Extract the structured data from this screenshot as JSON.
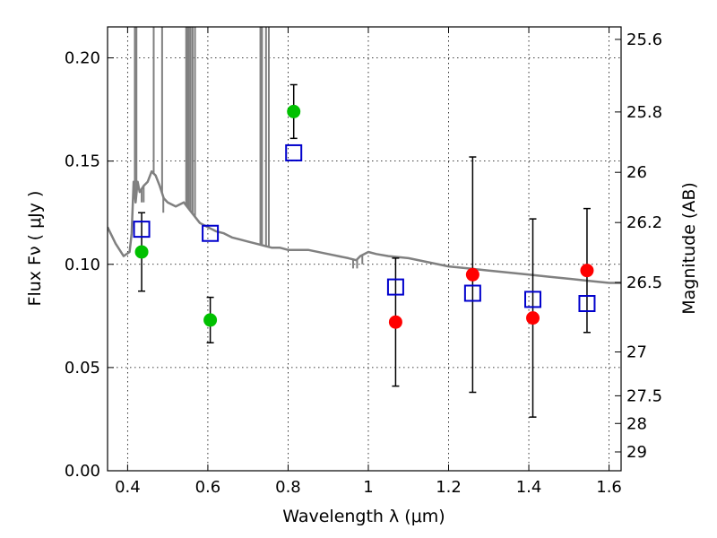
{
  "chart_data": {
    "type": "scatter",
    "xlabel": "Wavelength  λ (μm)",
    "ylabel": "Flux  Fν  ( μJy )",
    "y2label": "Magnitude (AB)",
    "xlim": [
      0.35,
      1.63
    ],
    "ylim": [
      0.0,
      0.215
    ],
    "grid": true,
    "x_ticks": [
      {
        "value": 0.4,
        "label": "0.4"
      },
      {
        "value": 0.6,
        "label": "0.6"
      },
      {
        "value": 0.8,
        "label": "0.8"
      },
      {
        "value": 1.0,
        "label": "1"
      },
      {
        "value": 1.2,
        "label": "1.2"
      },
      {
        "value": 1.4,
        "label": "1.4"
      },
      {
        "value": 1.6,
        "label": "1.6"
      }
    ],
    "y_ticks": [
      {
        "value": 0.0,
        "label": "0.00"
      },
      {
        "value": 0.05,
        "label": "0.05"
      },
      {
        "value": 0.1,
        "label": "0.10"
      },
      {
        "value": 0.15,
        "label": "0.15"
      },
      {
        "value": 0.2,
        "label": "0.20"
      }
    ],
    "y2_ticks": [
      {
        "mag": 25.6,
        "label": "25.6"
      },
      {
        "mag": 25.8,
        "label": "25.8"
      },
      {
        "mag": 26.0,
        "label": "26"
      },
      {
        "mag": 26.2,
        "label": "26.2"
      },
      {
        "mag": 26.5,
        "label": "26.5"
      },
      {
        "mag": 27.0,
        "label": "27"
      },
      {
        "mag": 27.5,
        "label": "27.5"
      },
      {
        "mag": 28.0,
        "label": "28"
      },
      {
        "mag": 29.0,
        "label": "29"
      }
    ],
    "series": [
      {
        "color": "#00c000",
        "marker": "circle",
        "points": [
          {
            "x": 0.435,
            "y": 0.106,
            "err_lo": 0.087,
            "err_hi": 0.125
          },
          {
            "x": 0.606,
            "y": 0.073,
            "err_lo": 0.062,
            "err_hi": 0.084
          },
          {
            "x": 0.814,
            "y": 0.174,
            "err_lo": 0.161,
            "err_hi": 0.187
          }
        ]
      },
      {
        "color": "#ff0000",
        "marker": "circle",
        "points": [
          {
            "x": 1.068,
            "y": 0.072,
            "err_lo": 0.041,
            "err_hi": 0.103
          },
          {
            "x": 1.26,
            "y": 0.095,
            "err_lo": 0.038,
            "err_hi": 0.152
          },
          {
            "x": 1.41,
            "y": 0.074,
            "err_lo": 0.026,
            "err_hi": 0.122
          },
          {
            "x": 1.545,
            "y": 0.097,
            "err_lo": 0.067,
            "err_hi": 0.127
          }
        ]
      },
      {
        "color": "#0000cc",
        "marker": "open-square",
        "points": [
          {
            "x": 0.435,
            "y": 0.117
          },
          {
            "x": 0.606,
            "y": 0.115
          },
          {
            "x": 0.814,
            "y": 0.154
          },
          {
            "x": 1.068,
            "y": 0.089
          },
          {
            "x": 1.26,
            "y": 0.086
          },
          {
            "x": 1.41,
            "y": 0.083
          },
          {
            "x": 1.545,
            "y": 0.081
          }
        ]
      }
    ],
    "model_spectrum": {
      "color": "#808080",
      "points": [
        [
          0.35,
          0.118
        ],
        [
          0.37,
          0.11
        ],
        [
          0.39,
          0.104
        ],
        [
          0.405,
          0.106
        ],
        [
          0.41,
          0.115
        ],
        [
          0.415,
          0.14
        ],
        [
          0.42,
          0.13
        ],
        [
          0.425,
          0.14
        ],
        [
          0.43,
          0.135
        ],
        [
          0.44,
          0.138
        ],
        [
          0.45,
          0.14
        ],
        [
          0.46,
          0.145
        ],
        [
          0.47,
          0.143
        ],
        [
          0.48,
          0.138
        ],
        [
          0.49,
          0.132
        ],
        [
          0.5,
          0.13
        ],
        [
          0.52,
          0.128
        ],
        [
          0.54,
          0.13
        ],
        [
          0.56,
          0.125
        ],
        [
          0.58,
          0.12
        ],
        [
          0.6,
          0.118
        ],
        [
          0.62,
          0.116
        ],
        [
          0.64,
          0.115
        ],
        [
          0.66,
          0.113
        ],
        [
          0.68,
          0.112
        ],
        [
          0.7,
          0.111
        ],
        [
          0.72,
          0.11
        ],
        [
          0.74,
          0.109
        ],
        [
          0.76,
          0.108
        ],
        [
          0.78,
          0.108
        ],
        [
          0.8,
          0.107
        ],
        [
          0.85,
          0.107
        ],
        [
          0.9,
          0.105
        ],
        [
          0.95,
          0.103
        ],
        [
          0.97,
          0.102
        ],
        [
          0.98,
          0.104
        ],
        [
          1.0,
          0.106
        ],
        [
          1.02,
          0.105
        ],
        [
          1.05,
          0.104
        ],
        [
          1.1,
          0.103
        ],
        [
          1.15,
          0.101
        ],
        [
          1.2,
          0.099
        ],
        [
          1.25,
          0.098
        ],
        [
          1.3,
          0.097
        ],
        [
          1.35,
          0.096
        ],
        [
          1.4,
          0.095
        ],
        [
          1.45,
          0.094
        ],
        [
          1.5,
          0.093
        ],
        [
          1.55,
          0.092
        ],
        [
          1.6,
          0.091
        ],
        [
          1.63,
          0.091
        ]
      ],
      "spikes": [
        [
          0.418,
          0.215
        ],
        [
          0.422,
          0.215
        ],
        [
          0.435,
          0.13
        ],
        [
          0.44,
          0.13
        ],
        [
          0.465,
          0.215
        ],
        [
          0.486,
          0.215
        ],
        [
          0.489,
          0.125
        ],
        [
          0.546,
          0.215
        ],
        [
          0.549,
          0.215
        ],
        [
          0.553,
          0.215
        ],
        [
          0.557,
          0.215
        ],
        [
          0.562,
          0.215
        ],
        [
          0.568,
          0.215
        ],
        [
          0.731,
          0.215
        ],
        [
          0.735,
          0.215
        ],
        [
          0.745,
          0.215
        ],
        [
          0.752,
          0.215
        ],
        [
          0.962,
          0.098
        ],
        [
          0.972,
          0.098
        ],
        [
          0.985,
          0.1
        ]
      ]
    }
  }
}
